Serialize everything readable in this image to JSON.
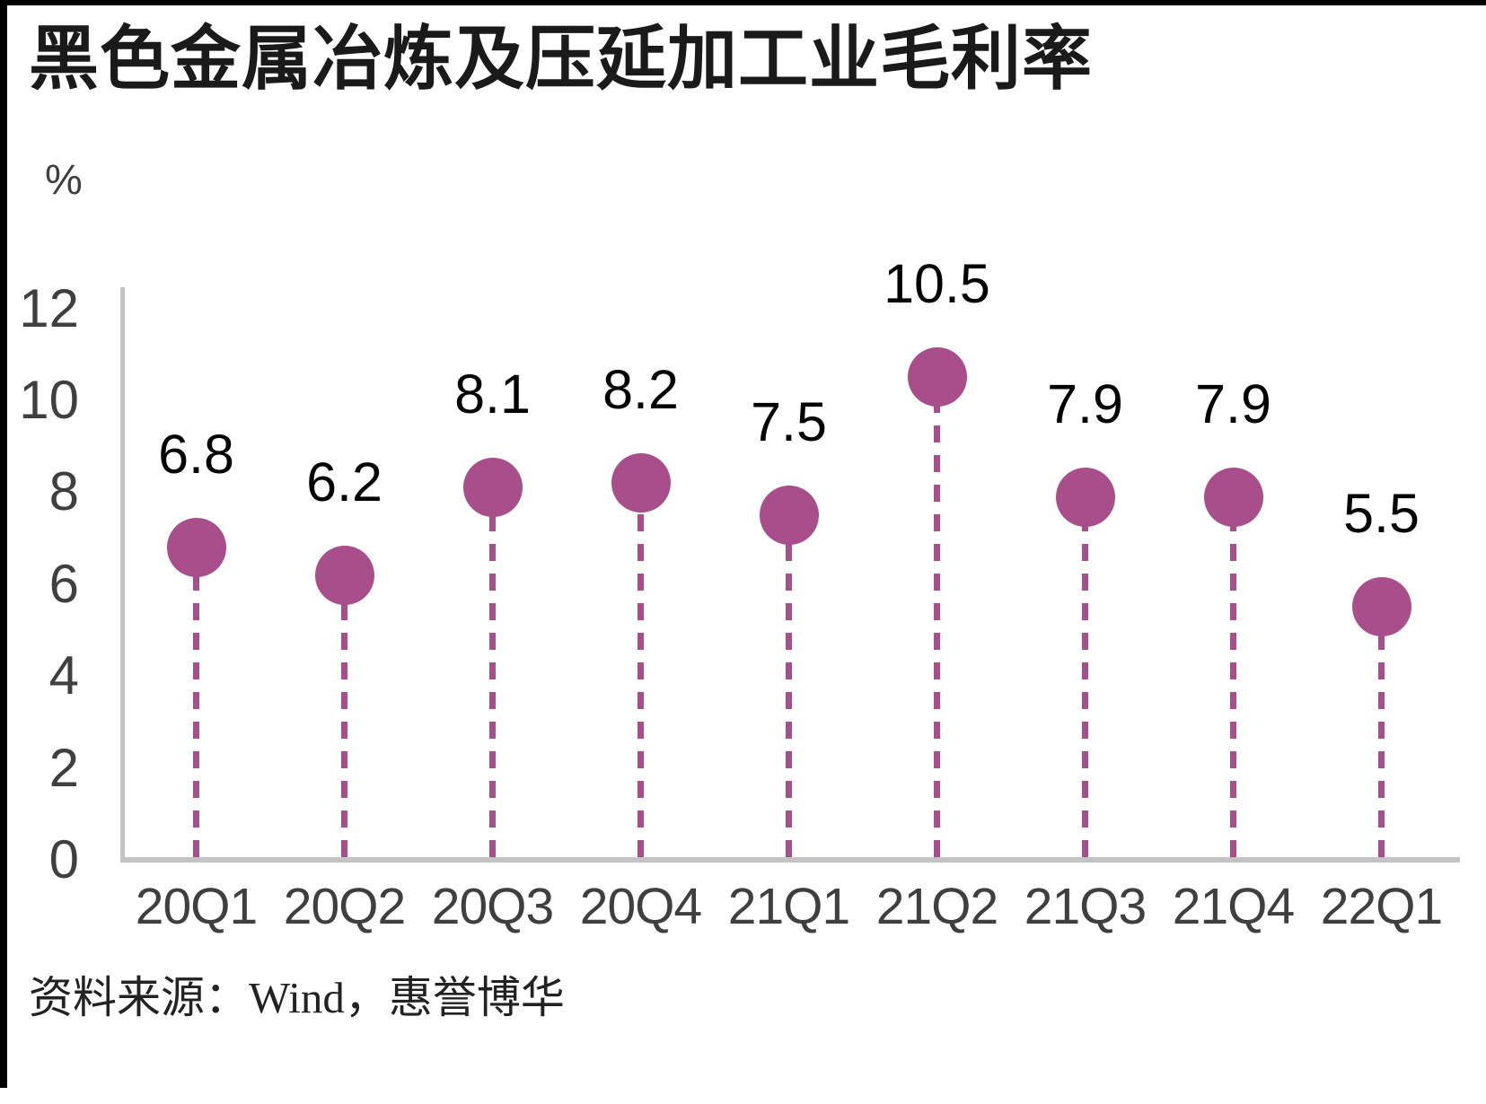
{
  "page": {
    "title": "黑色金属冶炼及压延加工业毛利率",
    "source_note": "资料来源：Wind，惠誉博华"
  },
  "chart_data": {
    "type": "scatter",
    "variant": "lollipop",
    "title": "黑色金属冶炼及压延加工业毛利率",
    "ylabel": "%",
    "categories": [
      "20Q1",
      "20Q2",
      "20Q3",
      "20Q4",
      "21Q1",
      "21Q2",
      "21Q3",
      "21Q4",
      "22Q1"
    ],
    "values": [
      6.8,
      6.2,
      8.1,
      8.2,
      7.5,
      10.5,
      7.9,
      7.9,
      5.5
    ],
    "value_labels": [
      "6.8",
      "6.2",
      "8.1",
      "8.2",
      "7.5",
      "10.5",
      "7.9",
      "7.9",
      "5.5"
    ],
    "ylim": [
      0,
      12
    ],
    "yticks": [
      12,
      10,
      8,
      6,
      4,
      2,
      0
    ],
    "grid": false,
    "legend": "none",
    "marker_color": "#A84E8B",
    "stem_style": "dashed",
    "axis_color": "#C3C3C3",
    "tick_label_color": "#3F3F3F",
    "value_label_color": "#000000",
    "source": "Wind，惠誉博华"
  }
}
